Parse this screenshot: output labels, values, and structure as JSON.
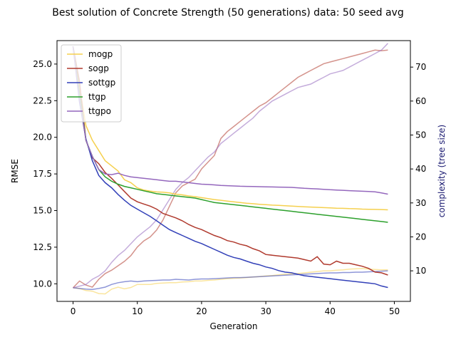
{
  "chart_data": {
    "type": "line",
    "title": "Best solution of Concrete Strength (50 generations) data: 50 seed avg",
    "xlabel": "Generation",
    "ylabel": "RMSE",
    "ylabel_right": "complexity (tree size)",
    "xlim": [
      -2.5,
      52.5
    ],
    "ylim": [
      8.8,
      26.6
    ],
    "ylim_right": [
      1.0,
      77.8
    ],
    "xticks": [
      0,
      10,
      20,
      30,
      40,
      50
    ],
    "yticks": [
      10.0,
      12.5,
      15.0,
      17.5,
      20.0,
      22.5,
      25.0
    ],
    "yticks_right": [
      10,
      20,
      30,
      40,
      50,
      60,
      70
    ],
    "legend_placement": "upper-left",
    "grid": false,
    "x": [
      0,
      1,
      2,
      3,
      4,
      5,
      6,
      7,
      8,
      9,
      10,
      11,
      12,
      13,
      14,
      15,
      16,
      17,
      18,
      19,
      20,
      21,
      22,
      23,
      24,
      25,
      26,
      27,
      28,
      29,
      30,
      31,
      32,
      33,
      34,
      35,
      36,
      37,
      38,
      39,
      40,
      41,
      42,
      43,
      44,
      45,
      46,
      47,
      48,
      49
    ],
    "series": [
      {
        "name": "mogp",
        "color": "#f5d04e",
        "axis": "left",
        "values": [
          26.2,
          23.5,
          20.8,
          19.8,
          19.1,
          18.4,
          18.05,
          17.7,
          17.1,
          16.9,
          16.55,
          16.4,
          16.33,
          16.27,
          16.25,
          16.2,
          16.12,
          16.07,
          16.0,
          15.95,
          15.88,
          15.82,
          15.75,
          15.7,
          15.65,
          15.6,
          15.55,
          15.5,
          15.47,
          15.43,
          15.4,
          15.37,
          15.35,
          15.33,
          15.3,
          15.28,
          15.26,
          15.24,
          15.22,
          15.2,
          15.18,
          15.16,
          15.15,
          15.13,
          15.12,
          15.1,
          15.09,
          15.08,
          15.07,
          15.05
        ]
      },
      {
        "name": "sogp",
        "color": "#b03a2e",
        "axis": "left",
        "values": [
          26.2,
          23.8,
          19.8,
          18.6,
          18.2,
          17.6,
          17.2,
          16.75,
          16.3,
          15.85,
          15.6,
          15.45,
          15.3,
          15.1,
          14.8,
          14.65,
          14.5,
          14.3,
          14.05,
          13.85,
          13.7,
          13.5,
          13.3,
          13.15,
          12.95,
          12.85,
          12.7,
          12.6,
          12.4,
          12.25,
          12.0,
          11.95,
          11.9,
          11.85,
          11.8,
          11.75,
          11.65,
          11.55,
          11.85,
          11.35,
          11.3,
          11.55,
          11.4,
          11.4,
          11.3,
          11.2,
          11.05,
          10.8,
          10.75,
          10.6
        ]
      },
      {
        "name": "sottgp",
        "color": "#3240b8",
        "axis": "left",
        "values": [
          26.2,
          22.4,
          19.9,
          18.4,
          17.4,
          16.9,
          16.55,
          16.1,
          15.7,
          15.35,
          15.1,
          14.85,
          14.6,
          14.3,
          14.0,
          13.7,
          13.5,
          13.3,
          13.1,
          12.9,
          12.75,
          12.55,
          12.35,
          12.15,
          11.95,
          11.8,
          11.7,
          11.55,
          11.4,
          11.3,
          11.15,
          11.05,
          10.9,
          10.8,
          10.75,
          10.65,
          10.55,
          10.5,
          10.45,
          10.4,
          10.35,
          10.3,
          10.25,
          10.2,
          10.15,
          10.1,
          10.05,
          10.0,
          9.85,
          9.75
        ]
      },
      {
        "name": "ttgp",
        "color": "#2ca02c",
        "axis": "left",
        "values": [
          26.2,
          23.0,
          19.8,
          18.7,
          17.8,
          17.3,
          17.0,
          16.8,
          16.65,
          16.55,
          16.45,
          16.35,
          16.25,
          16.15,
          16.1,
          16.05,
          16.0,
          15.95,
          15.9,
          15.85,
          15.75,
          15.65,
          15.55,
          15.5,
          15.45,
          15.4,
          15.35,
          15.3,
          15.25,
          15.2,
          15.15,
          15.1,
          15.05,
          15.0,
          14.95,
          14.9,
          14.85,
          14.8,
          14.75,
          14.7,
          14.65,
          14.6,
          14.55,
          14.5,
          14.45,
          14.4,
          14.35,
          14.3,
          14.25,
          14.2
        ]
      },
      {
        "name": "ttgpo",
        "color": "#9467bd",
        "axis": "left",
        "values": [
          26.2,
          22.6,
          19.8,
          18.7,
          17.8,
          17.5,
          17.45,
          17.55,
          17.4,
          17.3,
          17.25,
          17.2,
          17.15,
          17.1,
          17.05,
          17.0,
          17.0,
          16.95,
          16.9,
          16.85,
          16.8,
          16.78,
          16.75,
          16.72,
          16.7,
          16.68,
          16.66,
          16.65,
          16.64,
          16.63,
          16.62,
          16.61,
          16.6,
          16.59,
          16.58,
          16.55,
          16.52,
          16.5,
          16.48,
          16.45,
          16.42,
          16.4,
          16.38,
          16.36,
          16.34,
          16.32,
          16.3,
          16.28,
          16.2,
          16.12
        ]
      }
    ],
    "complexity_series": [
      {
        "name": "mogp",
        "color": "#f5d04e",
        "axis": "right",
        "values": [
          5.0,
          4.8,
          4.2,
          4.0,
          3.3,
          3.2,
          4.6,
          5.2,
          4.7,
          5.1,
          6.0,
          6.0,
          6.0,
          6.3,
          6.4,
          6.5,
          6.5,
          6.7,
          6.8,
          7.0,
          7.0,
          7.2,
          7.3,
          7.5,
          7.7,
          7.8,
          7.9,
          8.0,
          8.2,
          8.3,
          8.5,
          8.6,
          8.8,
          9.0,
          9.1,
          9.2,
          9.4,
          9.6,
          9.8,
          10.0,
          10.0,
          10.2,
          10.3,
          10.5,
          10.6,
          10.7,
          10.5,
          10.4,
          10.3,
          10.3
        ]
      },
      {
        "name": "sogp",
        "color": "#b03a2e",
        "axis": "right",
        "values": [
          5.0,
          7.0,
          5.8,
          5.2,
          7.5,
          9.2,
          10.2,
          11.5,
          12.8,
          14.5,
          17.0,
          18.8,
          20.0,
          22.0,
          25.0,
          29.0,
          33.0,
          35.0,
          36.0,
          37.0,
          40.0,
          42.0,
          44.0,
          49.0,
          51.0,
          52.5,
          54.0,
          55.5,
          57.0,
          58.5,
          59.5,
          61.0,
          62.5,
          64.0,
          65.5,
          67.0,
          68.0,
          69.0,
          70.0,
          71.0,
          71.5,
          72.0,
          72.5,
          73.0,
          73.5,
          74.0,
          74.5,
          75.0,
          74.8,
          75.0
        ]
      },
      {
        "name": "sottgp",
        "color": "#3240b8",
        "axis": "right",
        "values": [
          5.0,
          4.8,
          4.6,
          4.5,
          4.8,
          5.2,
          6.0,
          6.5,
          6.8,
          7.0,
          6.8,
          7.0,
          7.1,
          7.2,
          7.3,
          7.3,
          7.5,
          7.4,
          7.3,
          7.5,
          7.6,
          7.6,
          7.7,
          7.8,
          7.9,
          8.0,
          8.0,
          8.1,
          8.2,
          8.3,
          8.4,
          8.5,
          8.6,
          8.7,
          8.8,
          8.9,
          9.0,
          9.1,
          9.2,
          9.3,
          9.4,
          9.4,
          9.5,
          9.5,
          9.6,
          9.6,
          9.7,
          9.8,
          9.9,
          10.0
        ]
      },
      {
        "name": "ttgpo",
        "color": "#9467bd",
        "axis": "right",
        "values": [
          5.0,
          5.5,
          6.0,
          7.5,
          8.5,
          10.0,
          12.5,
          14.5,
          16.0,
          18.0,
          20.0,
          21.5,
          23.0,
          25.0,
          28.0,
          31.0,
          34.0,
          36.0,
          37.5,
          39.5,
          41.5,
          43.5,
          45.0,
          47.5,
          49.0,
          50.5,
          52.0,
          53.5,
          55.0,
          57.0,
          58.5,
          60.0,
          61.0,
          62.0,
          63.0,
          64.0,
          64.5,
          65.0,
          66.0,
          67.0,
          68.0,
          68.5,
          69.0,
          70.0,
          71.0,
          72.0,
          73.0,
          74.0,
          75.0,
          77.0
        ]
      }
    ]
  }
}
